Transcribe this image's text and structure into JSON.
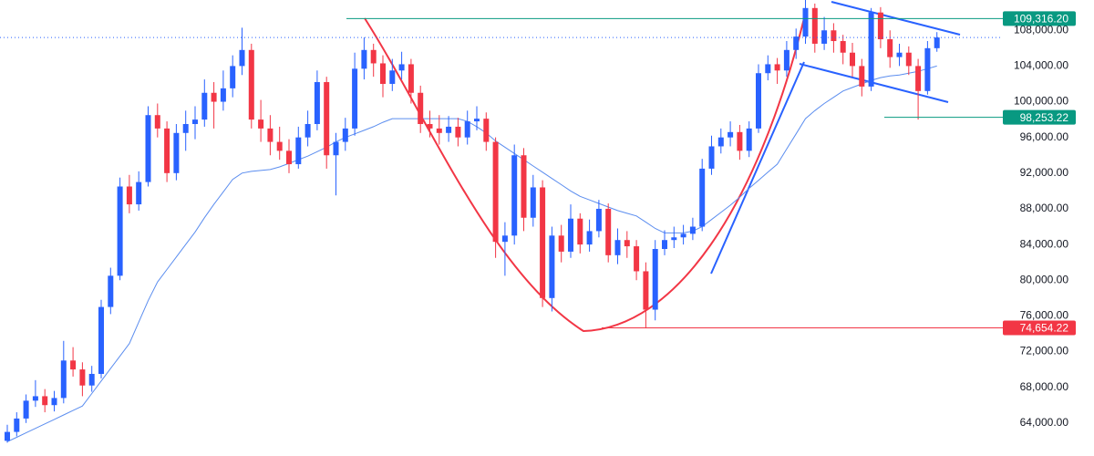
{
  "chart_data": {
    "type": "candlestick",
    "up_color": "#2962ff",
    "down_color": "#f23645",
    "grid": false,
    "ylim": [
      60300,
      111400
    ],
    "yticks": [
      {
        "value": 64000,
        "label": "64,000.00"
      },
      {
        "value": 68000,
        "label": "68,000.00"
      },
      {
        "value": 72000,
        "label": "72,000.00"
      },
      {
        "value": 76000,
        "label": "76,000.00"
      },
      {
        "value": 80000,
        "label": "80,000.00"
      },
      {
        "value": 84000,
        "label": "84,000.00"
      },
      {
        "value": 88000,
        "label": "88,000.00"
      },
      {
        "value": 92000,
        "label": "92,000.00"
      },
      {
        "value": 96000,
        "label": "96,000.00"
      },
      {
        "value": 100000,
        "label": "100,000.00"
      },
      {
        "value": 104000,
        "label": "104,000.00"
      },
      {
        "value": 108000,
        "label": "108,000.00"
      }
    ],
    "candles": [
      [
        62000,
        63800,
        61800,
        63000
      ],
      [
        63000,
        65200,
        62500,
        64500
      ],
      [
        64500,
        67200,
        64000,
        66500
      ],
      [
        66500,
        68800,
        65800,
        67000
      ],
      [
        67000,
        67800,
        65200,
        66000
      ],
      [
        66000,
        67600,
        65300,
        66800
      ],
      [
        66800,
        73200,
        66200,
        71000
      ],
      [
        71000,
        72500,
        69200,
        70000
      ],
      [
        70000,
        70800,
        67000,
        68200
      ],
      [
        68200,
        70400,
        67500,
        69500
      ],
      [
        69500,
        77800,
        69000,
        77000
      ],
      [
        77000,
        81400,
        76200,
        80500
      ],
      [
        80500,
        91500,
        80000,
        90500
      ],
      [
        90500,
        91800,
        87500,
        88500
      ],
      [
        88500,
        92200,
        87800,
        91000
      ],
      [
        91000,
        99500,
        90500,
        98500
      ],
      [
        98500,
        99800,
        96000,
        97000
      ],
      [
        97000,
        97800,
        91000,
        92000
      ],
      [
        92000,
        97500,
        91200,
        96500
      ],
      [
        96500,
        99000,
        94500,
        97500
      ],
      [
        97500,
        99500,
        95800,
        98000
      ],
      [
        98000,
        102500,
        97200,
        101000
      ],
      [
        101000,
        102200,
        97000,
        100000
      ],
      [
        100000,
        103500,
        99000,
        101500
      ],
      [
        101500,
        105200,
        100500,
        104000
      ],
      [
        104000,
        108300,
        103000,
        105800
      ],
      [
        105800,
        106500,
        97000,
        98000
      ],
      [
        98000,
        100200,
        95500,
        97000
      ],
      [
        97000,
        98500,
        94000,
        95500
      ],
      [
        95500,
        97200,
        93500,
        94500
      ],
      [
        94500,
        95800,
        92000,
        93000
      ],
      [
        93000,
        97200,
        92500,
        96000
      ],
      [
        96000,
        99000,
        95000,
        97500
      ],
      [
        97500,
        103500,
        96800,
        102200
      ],
      [
        102200,
        102800,
        92500,
        94000
      ],
      [
        94000,
        96500,
        89500,
        95500
      ],
      [
        95500,
        98200,
        94500,
        97000
      ],
      [
        97000,
        105500,
        96200,
        103700
      ],
      [
        103700,
        107200,
        102500,
        105800
      ],
      [
        105800,
        106500,
        102800,
        104300
      ],
      [
        104300,
        105200,
        100500,
        102000
      ],
      [
        102000,
        104800,
        101200,
        103500
      ],
      [
        103500,
        105600,
        102500,
        104200
      ],
      [
        104200,
        104800,
        99800,
        101000
      ],
      [
        101000,
        101800,
        96500,
        97500
      ],
      [
        97500,
        99000,
        96000,
        97000
      ],
      [
        97000,
        98500,
        95200,
        96500
      ],
      [
        96500,
        98400,
        95500,
        97200
      ],
      [
        97200,
        98200,
        95000,
        96000
      ],
      [
        96000,
        99000,
        95200,
        97800
      ],
      [
        97800,
        99500,
        96800,
        98100
      ],
      [
        98100,
        98800,
        94500,
        95500
      ],
      [
        95500,
        96000,
        82500,
        84300
      ],
      [
        84300,
        86500,
        80500,
        85000
      ],
      [
        85000,
        95200,
        84000,
        94000
      ],
      [
        94000,
        94800,
        85500,
        87000
      ],
      [
        87000,
        91800,
        86000,
        90400
      ],
      [
        90400,
        91200,
        77000,
        78000
      ],
      [
        78000,
        86000,
        76500,
        85000
      ],
      [
        85000,
        86200,
        82000,
        83200
      ],
      [
        83200,
        88500,
        82500,
        86900
      ],
      [
        86900,
        87500,
        83000,
        84000
      ],
      [
        84000,
        86800,
        83200,
        85500
      ],
      [
        85500,
        89000,
        84800,
        88000
      ],
      [
        88000,
        88600,
        82000,
        82800
      ],
      [
        82800,
        85800,
        81800,
        84500
      ],
      [
        84500,
        85500,
        82500,
        83800
      ],
      [
        83800,
        84500,
        80000,
        81000
      ],
      [
        81000,
        82000,
        74600,
        76700
      ],
      [
        76700,
        84500,
        75500,
        83500
      ],
      [
        83500,
        85600,
        82800,
        84500
      ],
      [
        84500,
        86000,
        83600,
        84800
      ],
      [
        84800,
        86200,
        84000,
        85200
      ],
      [
        85200,
        87000,
        84500,
        86000
      ],
      [
        86000,
        93600,
        85500,
        92500
      ],
      [
        92500,
        96200,
        91800,
        95000
      ],
      [
        95000,
        97000,
        94200,
        96000
      ],
      [
        96000,
        97800,
        95000,
        96600
      ],
      [
        96600,
        97400,
        93500,
        94500
      ],
      [
        94500,
        97800,
        93800,
        97000
      ],
      [
        97000,
        104200,
        96500,
        103200
      ],
      [
        103200,
        105200,
        102400,
        104200
      ],
      [
        104200,
        104900,
        102000,
        103500
      ],
      [
        103500,
        106800,
        102800,
        105800
      ],
      [
        105800,
        108200,
        104800,
        107300
      ],
      [
        107300,
        111800,
        106500,
        110500
      ],
      [
        110500,
        111000,
        105500,
        106500
      ],
      [
        106500,
        109500,
        105800,
        108000
      ],
      [
        108000,
        108800,
        105500,
        106800
      ],
      [
        106800,
        107500,
        104200,
        105500
      ],
      [
        105500,
        106600,
        102800,
        104000
      ],
      [
        104000,
        104800,
        100600,
        101700
      ],
      [
        101700,
        110500,
        101200,
        110000
      ],
      [
        110000,
        110600,
        106000,
        107000
      ],
      [
        107000,
        108000,
        103800,
        105000
      ],
      [
        105000,
        106500,
        104000,
        105500
      ],
      [
        105500,
        106200,
        103000,
        104000
      ],
      [
        104000,
        104800,
        98000,
        101200
      ],
      [
        101200,
        106800,
        100800,
        106000
      ],
      [
        106000,
        107800,
        105600,
        107200
      ]
    ],
    "moving_average": {
      "color": "#5b8def",
      "values": [
        61900,
        62400,
        62900,
        63400,
        63900,
        64400,
        64900,
        65400,
        65900,
        67300,
        68700,
        70100,
        71500,
        72900,
        75300,
        77700,
        79800,
        81200,
        82600,
        84000,
        85400,
        87000,
        88500,
        89900,
        91300,
        92000,
        92200,
        92300,
        92400,
        92700,
        93100,
        93500,
        93900,
        94400,
        94900,
        95500,
        96000,
        96400,
        96800,
        97200,
        97700,
        98100,
        98100,
        98100,
        98100,
        98100,
        98100,
        98100,
        98100,
        97800,
        97200,
        96500,
        95600,
        94900,
        94200,
        93500,
        92800,
        92100,
        91400,
        90700,
        90000,
        89400,
        89000,
        88600,
        88200,
        87800,
        87500,
        87200,
        86500,
        85800,
        85300,
        85300,
        85300,
        85500,
        86000,
        86800,
        87600,
        88400,
        89300,
        90300,
        91200,
        92100,
        93000,
        94700,
        96400,
        98100,
        99000,
        99800,
        100500,
        101200,
        101600,
        102000,
        102400,
        102700,
        102900,
        103000,
        103200,
        103400,
        103700,
        104000
      ]
    },
    "levels": [
      {
        "value": 109316.2,
        "label": "109,316.20",
        "color": "#089981"
      },
      {
        "value": 98253.22,
        "label": "98,253.22",
        "color": "#089981"
      },
      {
        "value": 74654.22,
        "label": "74,654.22",
        "color": "#f23645"
      }
    ]
  }
}
